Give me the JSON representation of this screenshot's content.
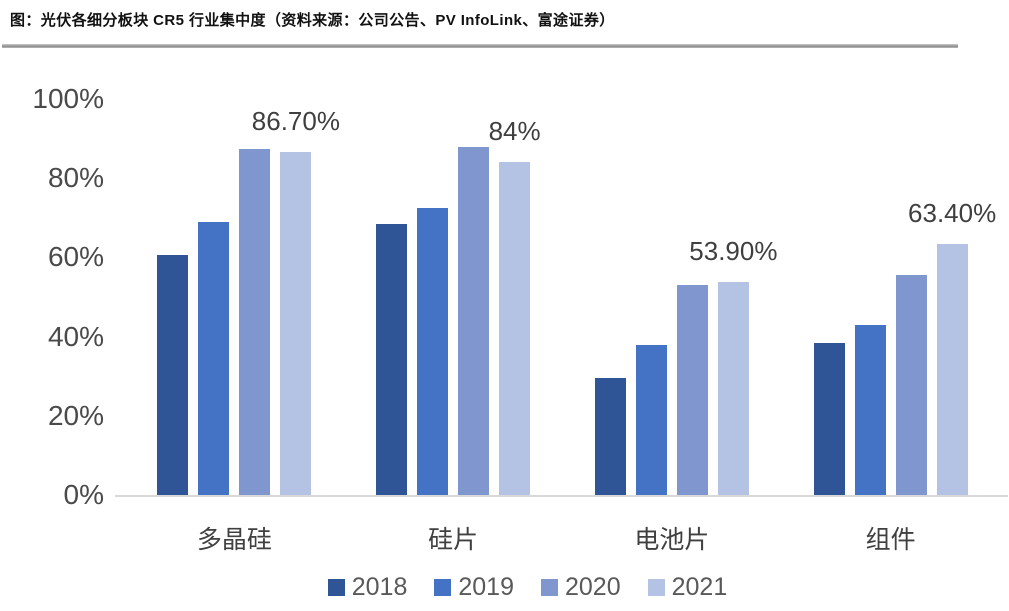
{
  "header": {
    "title": "图：光伏各细分板块 CR5 行业集中度（资料来源：公司公告、PV InfoLink、富途证券）"
  },
  "chart_data": {
    "type": "bar",
    "title": "光伏各细分板块CR5行业集中度",
    "categories": [
      "多晶硅",
      "硅片",
      "电池片",
      "组件"
    ],
    "series": [
      {
        "name": "2018",
        "color": "#2F5597",
        "values": [
          60.5,
          68.5,
          29.5,
          38.5
        ]
      },
      {
        "name": "2019",
        "color": "#4472C4",
        "values": [
          69,
          72.5,
          38,
          43
        ]
      },
      {
        "name": "2020",
        "color": "#8096CE",
        "values": [
          87.5,
          88,
          53,
          55.5
        ]
      },
      {
        "name": "2021",
        "color": "#B4C2E4",
        "values": [
          86.7,
          84,
          53.9,
          63.4
        ]
      }
    ],
    "data_labels": {
      "series": "2021",
      "values": [
        "86.70%",
        "84%",
        "53.90%",
        "63.40%"
      ]
    },
    "y_axis": {
      "ticks": [
        "100%",
        "80%",
        "60%",
        "40%",
        "20%",
        "0%"
      ],
      "min": 0,
      "max": 100
    },
    "grid": false,
    "legend_position": "bottom",
    "colors": {
      "axis_text": "#4A4A4A",
      "data_label_text": "#3F3F3F",
      "legend_text": "#595959",
      "baseline": "#D9D9D9",
      "divider": "#A6A6A6",
      "background": "#FFFFFF"
    }
  }
}
